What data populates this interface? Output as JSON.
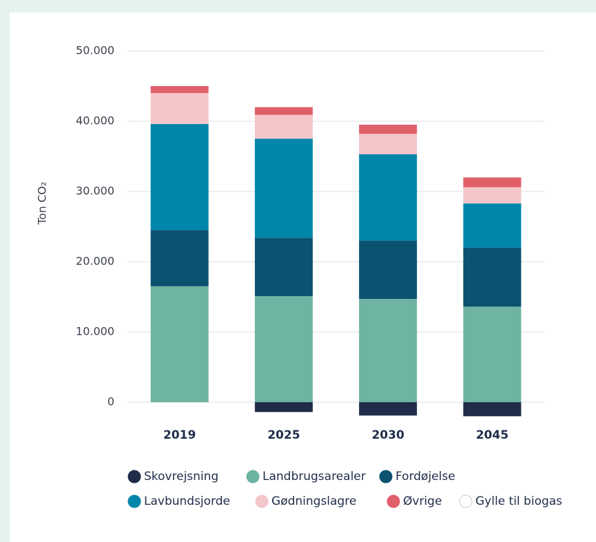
{
  "chart_data": {
    "type": "stacked-bar",
    "y_label": "Ton CO₂",
    "categories": [
      "2019",
      "2025",
      "2030",
      "2045"
    ],
    "series": [
      {
        "name": "Skovrejsning",
        "color": "#1f2d4a",
        "values": [
          0,
          -1400,
          -1900,
          -2000
        ]
      },
      {
        "name": "Landbrugsarealer",
        "color": "#6fb3a3",
        "values": [
          16500,
          15100,
          14700,
          13600
        ]
      },
      {
        "name": "Fordøjelse",
        "color": "#0b5270",
        "values": [
          8000,
          8300,
          8300,
          8400
        ]
      },
      {
        "name": "Lavbundsjorde",
        "color": "#0085ab",
        "values": [
          15100,
          14100,
          12300,
          6300
        ]
      },
      {
        "name": "Gødningslagre",
        "color": "#f4c6c9",
        "values": [
          4400,
          3400,
          2900,
          2300
        ]
      },
      {
        "name": "Øvrige",
        "color": "#e0606a",
        "values": [
          1000,
          1100,
          1300,
          1400
        ]
      },
      {
        "name": "Gylle til biogas",
        "color": "#ffffff",
        "values": [
          0,
          0,
          0,
          0
        ]
      }
    ],
    "ylim": [
      -2500,
      50000
    ],
    "yticks": [
      0,
      {
        "value": 10000,
        "label": "10.000"
      },
      {
        "value": 20000,
        "label": "20.000"
      },
      {
        "value": 30000,
        "label": "30.000"
      },
      {
        "value": 40000,
        "label": "40.000"
      },
      {
        "value": 50000,
        "label": "50.000"
      }
    ],
    "grid": true
  }
}
